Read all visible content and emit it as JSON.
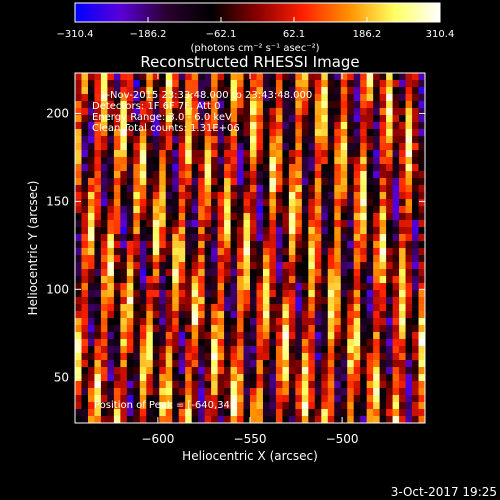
{
  "chart_data": {
    "type": "heatmap",
    "title": "Reconstructed RHESSI Image",
    "xlabel": "Heliocentric X (arcsec)",
    "ylabel": "Heliocentric Y (arcsec)",
    "xlim": [
      -645,
      -455
    ],
    "ylim": [
      24,
      223
    ],
    "xticks": [
      -600,
      -550,
      -500
    ],
    "yticks": [
      50,
      100,
      150,
      200
    ],
    "xtick_labels": [
      "−600",
      "−550",
      "−500"
    ],
    "ytick_labels": [
      "50",
      "100",
      "150",
      "200"
    ],
    "grid": false,
    "colorbar": {
      "label": "(photons cm⁻² s⁻¹ asec⁻²)",
      "range": [
        -310.4,
        310.4
      ],
      "ticks": [
        -310.4,
        -186.2,
        -62.1,
        62.1,
        186.2,
        310.4
      ],
      "tick_labels": [
        "−310.4",
        "−186.2",
        "−62.1",
        "62.1",
        "186.2",
        "310.4"
      ],
      "colormap": [
        "#0000ff",
        "#5a00d8",
        "#2a0030",
        "#000000",
        "#8a0000",
        "#ff2000",
        "#ff9000",
        "#ffff60",
        "#ffffff"
      ]
    },
    "annotations": [
      "1-Nov-2015 23:33:48.000 to 23:43:48.000",
      "Detectors: 1F 6F 7F, Att 0",
      "Energy Range: 3.0 - 6.0 keV",
      "Clean    Total counts: 1.31E+06"
    ],
    "peak_label": "Position of Peak = [-640,34]",
    "grid_cells": {
      "nx": 54,
      "ny": 50
    }
  },
  "footer": {
    "date": "3-Oct-2017 19:25"
  }
}
